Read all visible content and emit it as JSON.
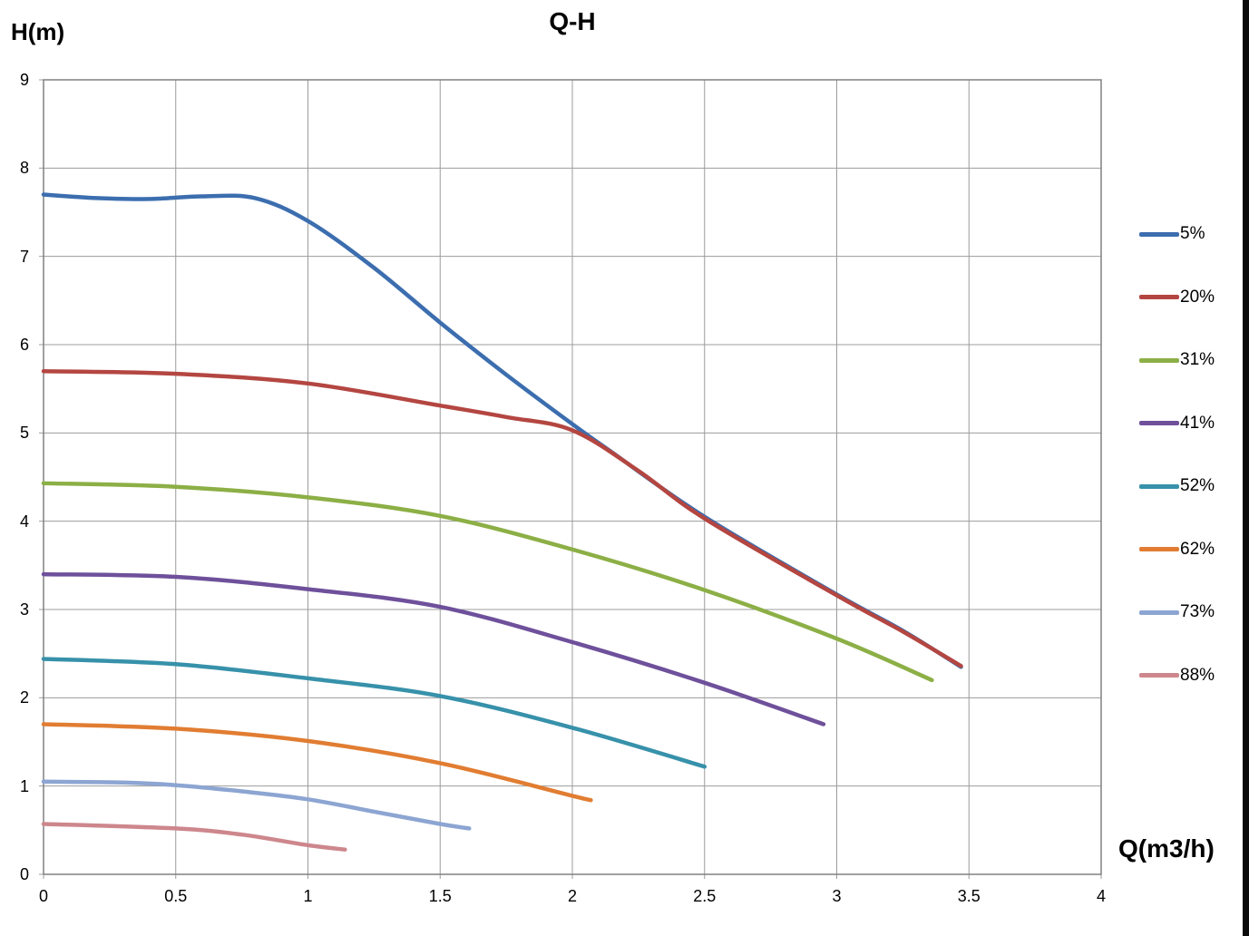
{
  "title": "Q-H",
  "axis_labels": {
    "y": "H(m)",
    "x": "Q(m3/h)"
  },
  "colors": {
    "grid": "#9C9C9C",
    "plot_border": "#808080",
    "text": "#000000",
    "right_edge_bar": "#0A0A0A",
    "background": "#FFFFFF"
  },
  "chart_data": {
    "type": "line",
    "title": "Q-H",
    "xlabel": "Q(m3/h)",
    "ylabel": "H(m)",
    "xlim": [
      0,
      4
    ],
    "ylim": [
      0,
      9
    ],
    "x_ticks": [
      "0",
      "0.5",
      "1",
      "1.5",
      "2",
      "2.5",
      "3",
      "3.5",
      "4"
    ],
    "y_ticks": [
      "0",
      "1",
      "2",
      "3",
      "4",
      "5",
      "6",
      "7",
      "8",
      "9"
    ],
    "grid": true,
    "legend_position": "right",
    "series": [
      {
        "name": "5%",
        "color": "#3C6EAF",
        "points": [
          [
            0,
            7.7
          ],
          [
            0.2,
            7.66
          ],
          [
            0.4,
            7.65
          ],
          [
            0.6,
            7.68
          ],
          [
            0.8,
            7.66
          ],
          [
            1.0,
            7.4
          ],
          [
            1.25,
            6.87
          ],
          [
            1.5,
            6.25
          ],
          [
            1.75,
            5.66
          ],
          [
            2.0,
            5.1
          ],
          [
            2.15,
            4.78
          ],
          [
            2.5,
            4.05
          ],
          [
            3.0,
            3.17
          ],
          [
            3.25,
            2.76
          ],
          [
            3.47,
            2.35
          ]
        ]
      },
      {
        "name": "20%",
        "color": "#B44641",
        "points": [
          [
            0,
            5.7
          ],
          [
            0.5,
            5.67
          ],
          [
            1.0,
            5.56
          ],
          [
            1.5,
            5.31
          ],
          [
            1.75,
            5.18
          ],
          [
            2.0,
            5.03
          ],
          [
            2.25,
            4.57
          ],
          [
            2.5,
            4.03
          ],
          [
            3.0,
            3.16
          ],
          [
            3.25,
            2.75
          ],
          [
            3.47,
            2.36
          ]
        ]
      },
      {
        "name": "31%",
        "color": "#8CAF46",
        "points": [
          [
            0,
            4.43
          ],
          [
            0.5,
            4.39
          ],
          [
            1.0,
            4.27
          ],
          [
            1.5,
            4.06
          ],
          [
            2.0,
            3.68
          ],
          [
            2.5,
            3.22
          ],
          [
            3.0,
            2.67
          ],
          [
            3.36,
            2.2
          ]
        ]
      },
      {
        "name": "41%",
        "color": "#6E509B",
        "points": [
          [
            0,
            3.4
          ],
          [
            0.5,
            3.37
          ],
          [
            1.0,
            3.23
          ],
          [
            1.5,
            3.03
          ],
          [
            2.0,
            2.63
          ],
          [
            2.5,
            2.17
          ],
          [
            2.95,
            1.7
          ]
        ]
      },
      {
        "name": "52%",
        "color": "#3791AA",
        "points": [
          [
            0,
            2.44
          ],
          [
            0.5,
            2.38
          ],
          [
            1.0,
            2.22
          ],
          [
            1.5,
            2.02
          ],
          [
            2.0,
            1.66
          ],
          [
            2.5,
            1.22
          ]
        ]
      },
      {
        "name": "62%",
        "color": "#E17D32",
        "points": [
          [
            0,
            1.7
          ],
          [
            0.5,
            1.65
          ],
          [
            1.0,
            1.51
          ],
          [
            1.5,
            1.26
          ],
          [
            2.0,
            0.89
          ],
          [
            2.07,
            0.84
          ]
        ]
      },
      {
        "name": "73%",
        "color": "#8CA5D2",
        "points": [
          [
            0,
            1.05
          ],
          [
            0.3,
            1.04
          ],
          [
            0.5,
            1.01
          ],
          [
            0.75,
            0.94
          ],
          [
            1.0,
            0.85
          ],
          [
            1.25,
            0.71
          ],
          [
            1.5,
            0.57
          ],
          [
            1.61,
            0.52
          ]
        ]
      },
      {
        "name": "88%",
        "color": "#CD878C",
        "points": [
          [
            0,
            0.57
          ],
          [
            0.5,
            0.52
          ],
          [
            0.75,
            0.45
          ],
          [
            1.0,
            0.33
          ],
          [
            1.14,
            0.28
          ]
        ]
      }
    ]
  }
}
